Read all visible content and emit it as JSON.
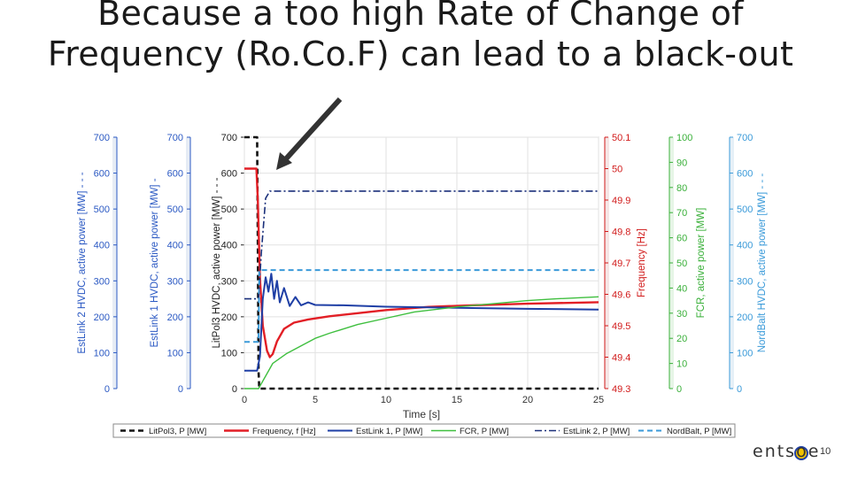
{
  "slide": {
    "title": "Because a too high Rate of Change of Frequency (Ro.Co.F) can lead to a black-out",
    "page_number": "10",
    "logo_text": "entsoe"
  },
  "colors": {
    "litpol": "#111111",
    "frequency": "#e21f26",
    "estlink1": "#1f3fa5",
    "fcr": "#3fbf3f",
    "estlink2": "#1a2f7a",
    "nordbalt": "#3a9ad9",
    "axis_blue": "#2b59c3",
    "axis_red": "#d11a1a",
    "axis_green": "#3ab03a",
    "axis_lightblue": "#3a9ad9",
    "arrow": "#333333"
  },
  "chart_data": {
    "type": "line",
    "xlabel": "Time [s]",
    "xlim": [
      0,
      25
    ],
    "xticks": [
      0,
      5,
      10,
      15,
      20,
      25
    ],
    "grid": true,
    "legend_position": "bottom",
    "axes": {
      "estlink2": {
        "label": "EstLink 2 HVDC, active power [MW] - - -",
        "ticks": [
          "0",
          "100",
          "200",
          "300",
          "400",
          "500",
          "600",
          "700"
        ],
        "lim": [
          0,
          700
        ]
      },
      "estlink1": {
        "label": "EstLink 1 HVDC, active power [MW] -",
        "ticks": [
          "0",
          "100",
          "200",
          "300",
          "400",
          "500",
          "600",
          "700"
        ],
        "lim": [
          0,
          700
        ]
      },
      "litpol": {
        "label": "LitPol3 HVDC, active power [MW] - - -",
        "ticks": [
          "0",
          "100",
          "200",
          "300",
          "400",
          "500",
          "600",
          "700"
        ],
        "lim": [
          0,
          700
        ]
      },
      "frequency": {
        "label": "Frequency [Hz]",
        "ticks": [
          "49.3",
          "49.4",
          "49.5",
          "49.6",
          "49.7",
          "49.8",
          "49.9",
          "50",
          "50.1"
        ],
        "lim": [
          49.3,
          50.1
        ]
      },
      "fcr": {
        "label": "FCR, active power [MW]",
        "ticks": [
          "0",
          "10",
          "20",
          "30",
          "40",
          "50",
          "60",
          "70",
          "80",
          "90",
          "100"
        ],
        "lim": [
          0,
          100
        ]
      },
      "nordbalt": {
        "label": "NordBalt HVDC, active power [MW] - - -",
        "ticks": [
          "0",
          "100",
          "200",
          "300",
          "400",
          "500",
          "600",
          "700"
        ],
        "lim": [
          0,
          700
        ]
      }
    },
    "series": [
      {
        "name": "LitPol3, P [MW]",
        "key": "litpol",
        "axis": "litpol",
        "dash": "6,4",
        "x": [
          0,
          0.9,
          0.95,
          1.0,
          1.05,
          25
        ],
        "y": [
          700,
          700,
          400,
          50,
          0,
          0
        ]
      },
      {
        "name": "Frequency, f [Hz]",
        "key": "frequency",
        "axis": "frequency",
        "dash": "",
        "x": [
          0,
          0.85,
          0.95,
          1.1,
          1.3,
          1.6,
          1.8,
          2.0,
          2.3,
          2.8,
          3.5,
          4.5,
          6,
          8,
          10,
          13,
          16,
          20,
          25
        ],
        "y": [
          50.0,
          50.0,
          49.9,
          49.65,
          49.5,
          49.42,
          49.4,
          49.41,
          49.45,
          49.49,
          49.51,
          49.52,
          49.53,
          49.54,
          49.55,
          49.56,
          49.565,
          49.57,
          49.575
        ]
      },
      {
        "name": "EstLink 1, P [MW]",
        "key": "estlink1",
        "axis": "estlink1",
        "dash": "",
        "x": [
          0,
          0.9,
          1.1,
          1.3,
          1.5,
          1.7,
          1.9,
          2.1,
          2.3,
          2.5,
          2.8,
          3.2,
          3.6,
          4.0,
          4.5,
          5,
          7,
          10,
          15,
          20,
          25
        ],
        "y": [
          50,
          50,
          90,
          250,
          310,
          270,
          320,
          250,
          300,
          240,
          280,
          230,
          255,
          232,
          240,
          233,
          232,
          228,
          225,
          222,
          220
        ]
      },
      {
        "name": "FCR, P [MW]",
        "key": "fcr",
        "axis": "fcr",
        "dash": "",
        "x": [
          0,
          1.0,
          1.3,
          1.6,
          2.0,
          3,
          4,
          5,
          6,
          8,
          10,
          12,
          15,
          18,
          20,
          22,
          25
        ],
        "y": [
          0,
          0,
          3,
          6,
          10,
          14,
          17,
          20,
          22,
          25.5,
          28,
          30.5,
          32.5,
          34,
          35,
          35.7,
          36.5
        ]
      },
      {
        "name": "EstLink 2, P [MW]",
        "key": "estlink2",
        "axis": "estlink2",
        "dash": "8,3,2,3",
        "x": [
          0,
          1.0,
          1.2,
          1.5,
          1.8,
          25
        ],
        "y": [
          250,
          250,
          380,
          530,
          550,
          550
        ]
      },
      {
        "name": "NordBalt, P [MW]",
        "key": "nordbalt",
        "axis": "nordbalt",
        "dash": "6,4",
        "x": [
          0,
          1.0,
          1.05,
          25
        ],
        "y": [
          130,
          130,
          330,
          330
        ]
      }
    ],
    "annotation": {
      "type": "arrow",
      "target": "initial frequency drop"
    }
  }
}
